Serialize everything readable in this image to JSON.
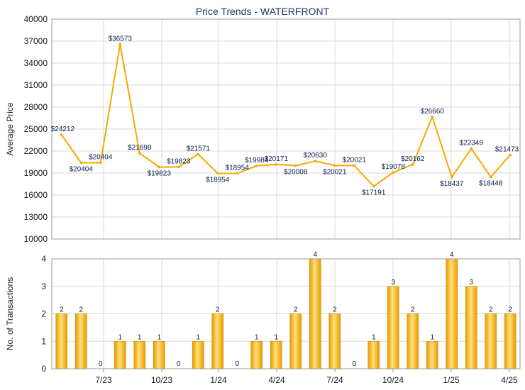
{
  "chart_data": [
    {
      "type": "line",
      "title": "Price Trends - WATERFRONT",
      "ylabel": "Average Price",
      "ylim": [
        10000,
        40000
      ],
      "y_ticks": [
        10000,
        13000,
        16000,
        19000,
        22000,
        25000,
        28000,
        31000,
        34000,
        37000,
        40000
      ],
      "x_tick_labels": [
        "7/23",
        "10/23",
        "1/24",
        "4/24",
        "7/24",
        "10/24",
        "1/25",
        "4/25"
      ],
      "grid": true,
      "color": "#f5a800",
      "values": [
        24212,
        20404,
        20404,
        36573,
        21698,
        19823,
        19823,
        21571,
        18954,
        18954,
        19984,
        20171,
        20008,
        20630,
        20021,
        20021,
        17191,
        19078,
        20162,
        26660,
        18437,
        22349,
        18448,
        21473
      ],
      "labels": [
        "$24212",
        "$20404",
        "$20404",
        "$36573",
        "$21698",
        "$19823",
        "$19823",
        "$21571",
        "$18954",
        "$18954",
        "$19984",
        "$20171",
        "$20008",
        "$20630",
        "$20021",
        "$20021",
        "$17191",
        "$19078",
        "$20162",
        "$26660",
        "$18437",
        "$22349",
        "$18448",
        "$21473"
      ]
    },
    {
      "type": "bar",
      "ylabel": "No. of Transactions",
      "ylim": [
        0,
        4
      ],
      "y_ticks": [
        0,
        1,
        2,
        3,
        4
      ],
      "x_tick_labels": [
        "7/23",
        "10/23",
        "1/24",
        "4/24",
        "7/24",
        "10/24",
        "1/25",
        "4/25"
      ],
      "grid": true,
      "color": "#f5a800",
      "values": [
        2,
        2,
        0,
        1,
        1,
        1,
        0,
        1,
        2,
        0,
        1,
        1,
        2,
        4,
        2,
        0,
        1,
        3,
        2,
        1,
        4,
        3,
        2,
        2
      ],
      "labels": [
        "2",
        "2",
        "0",
        "1",
        "1",
        "1",
        "0",
        "1",
        "2",
        "0",
        "1",
        "1",
        "2",
        "4",
        "2",
        "0",
        "1",
        "3",
        "2",
        "1",
        "4",
        "3",
        "2",
        "2"
      ]
    }
  ]
}
